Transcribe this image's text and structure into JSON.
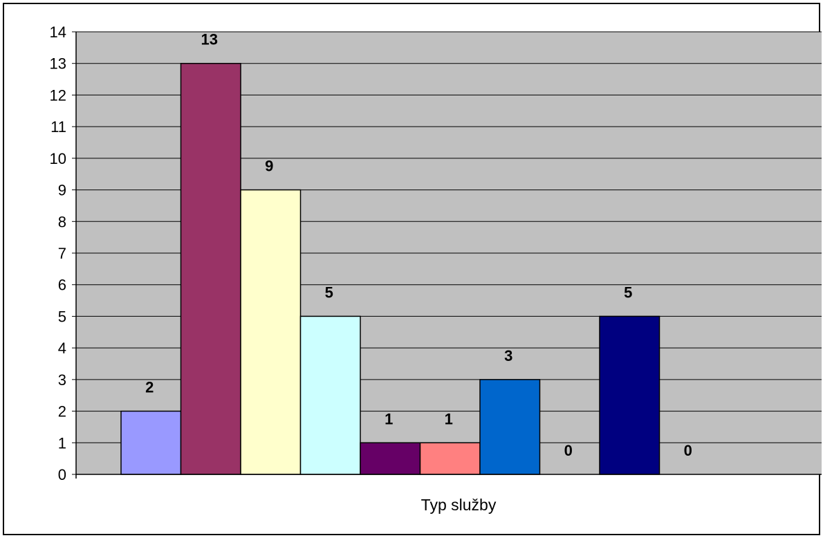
{
  "chart_data": {
    "type": "bar",
    "title": "",
    "xlabel": "Typ služby",
    "ylabel": "",
    "ylim": [
      0,
      14
    ],
    "y_ticks": [
      "0",
      "1",
      "2",
      "3",
      "4",
      "5",
      "6",
      "7",
      "8",
      "9",
      "10",
      "11",
      "12",
      "13",
      "14"
    ],
    "grid": true,
    "legend": "none",
    "plot_background": "#C0C0C0",
    "bars": [
      {
        "value": 2,
        "color": "#9999FF"
      },
      {
        "value": 13,
        "color": "#993366"
      },
      {
        "value": 9,
        "color": "#FFFFCC"
      },
      {
        "value": 5,
        "color": "#CCFFFF"
      },
      {
        "value": 1,
        "color": "#660066"
      },
      {
        "value": 1,
        "color": "#FF8080"
      },
      {
        "value": 3,
        "color": "#0066CC"
      },
      {
        "value": 0,
        "color": "#CCCCFF"
      },
      {
        "value": 5,
        "color": "#000080"
      },
      {
        "value": 0,
        "color": "#FF00FF"
      }
    ]
  }
}
